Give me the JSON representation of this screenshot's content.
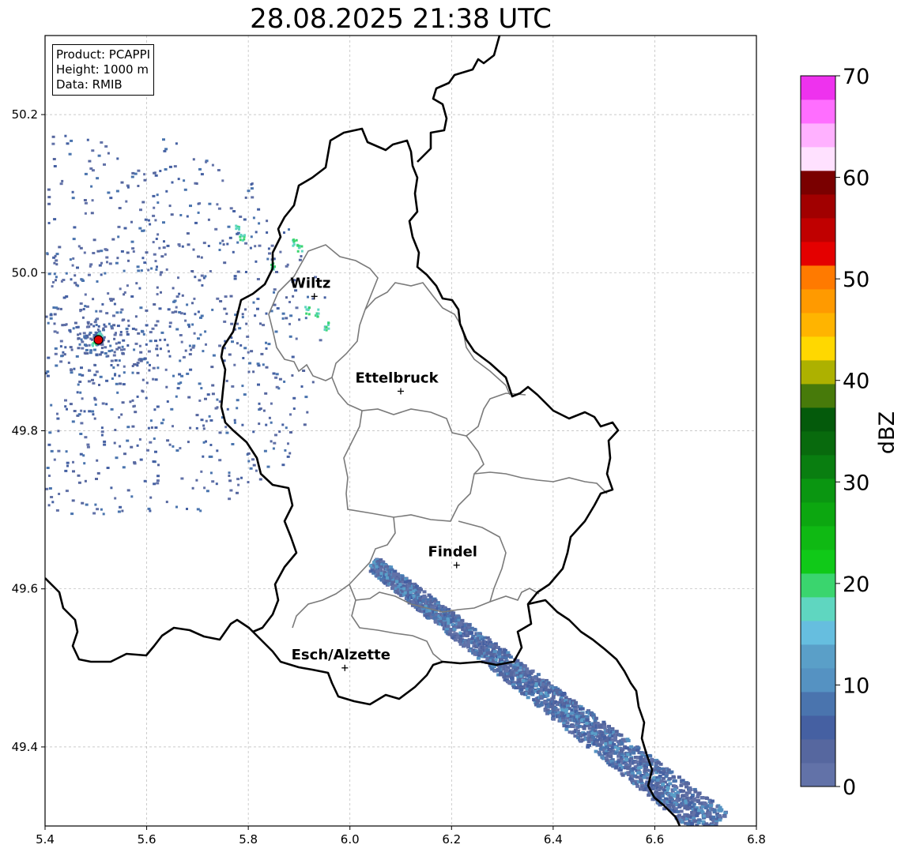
{
  "title": "28.08.2025 21:38 UTC",
  "info": {
    "product": "Product: PCAPPI",
    "height": "Height: 1000 m",
    "data": "Data: RMIB"
  },
  "axes": {
    "x_ticks": [
      "5.4",
      "5.6",
      "5.8",
      "6.0",
      "6.2",
      "6.4",
      "6.6",
      "6.8"
    ],
    "y_ticks": [
      "49.4",
      "49.6",
      "49.8",
      "50.0",
      "50.2"
    ],
    "x_range": [
      5.4,
      6.8
    ],
    "y_range": [
      49.3,
      50.3
    ]
  },
  "cities": [
    {
      "name": "Wiltz",
      "lon": 5.93,
      "lat": 49.97
    },
    {
      "name": "Ettelbruck",
      "lon": 6.1,
      "lat": 49.85
    },
    {
      "name": "Findel",
      "lon": 6.21,
      "lat": 49.63
    },
    {
      "name": "Esch/Alzette",
      "lon": 5.99,
      "lat": 49.5
    }
  ],
  "radar_site": {
    "lon": 5.505,
    "lat": 49.915
  },
  "colorbar": {
    "label": "dBZ",
    "ticks": [
      "0",
      "10",
      "20",
      "30",
      "40",
      "50",
      "60",
      "70"
    ],
    "min": 0,
    "max": 70,
    "step": 2.5,
    "colors": [
      "#6272a8",
      "#56679f",
      "#4560a2",
      "#4a74ae",
      "#5592c2",
      "#5a9fc8",
      "#66bedf",
      "#5fd6c0",
      "#3ad56e",
      "#10c918",
      "#0fb913",
      "#0ca710",
      "#0a9611",
      "#097e10",
      "#086a0d",
      "#045a0b",
      "#477a0a",
      "#adb100",
      "#ffd800",
      "#ffb400",
      "#ff9a00",
      "#ff7a00",
      "#e40000",
      "#c00000",
      "#a10000",
      "#7a0000",
      "#ffe1ff",
      "#ffb1ff",
      "#ff6eff",
      "#ee32ee"
    ]
  }
}
